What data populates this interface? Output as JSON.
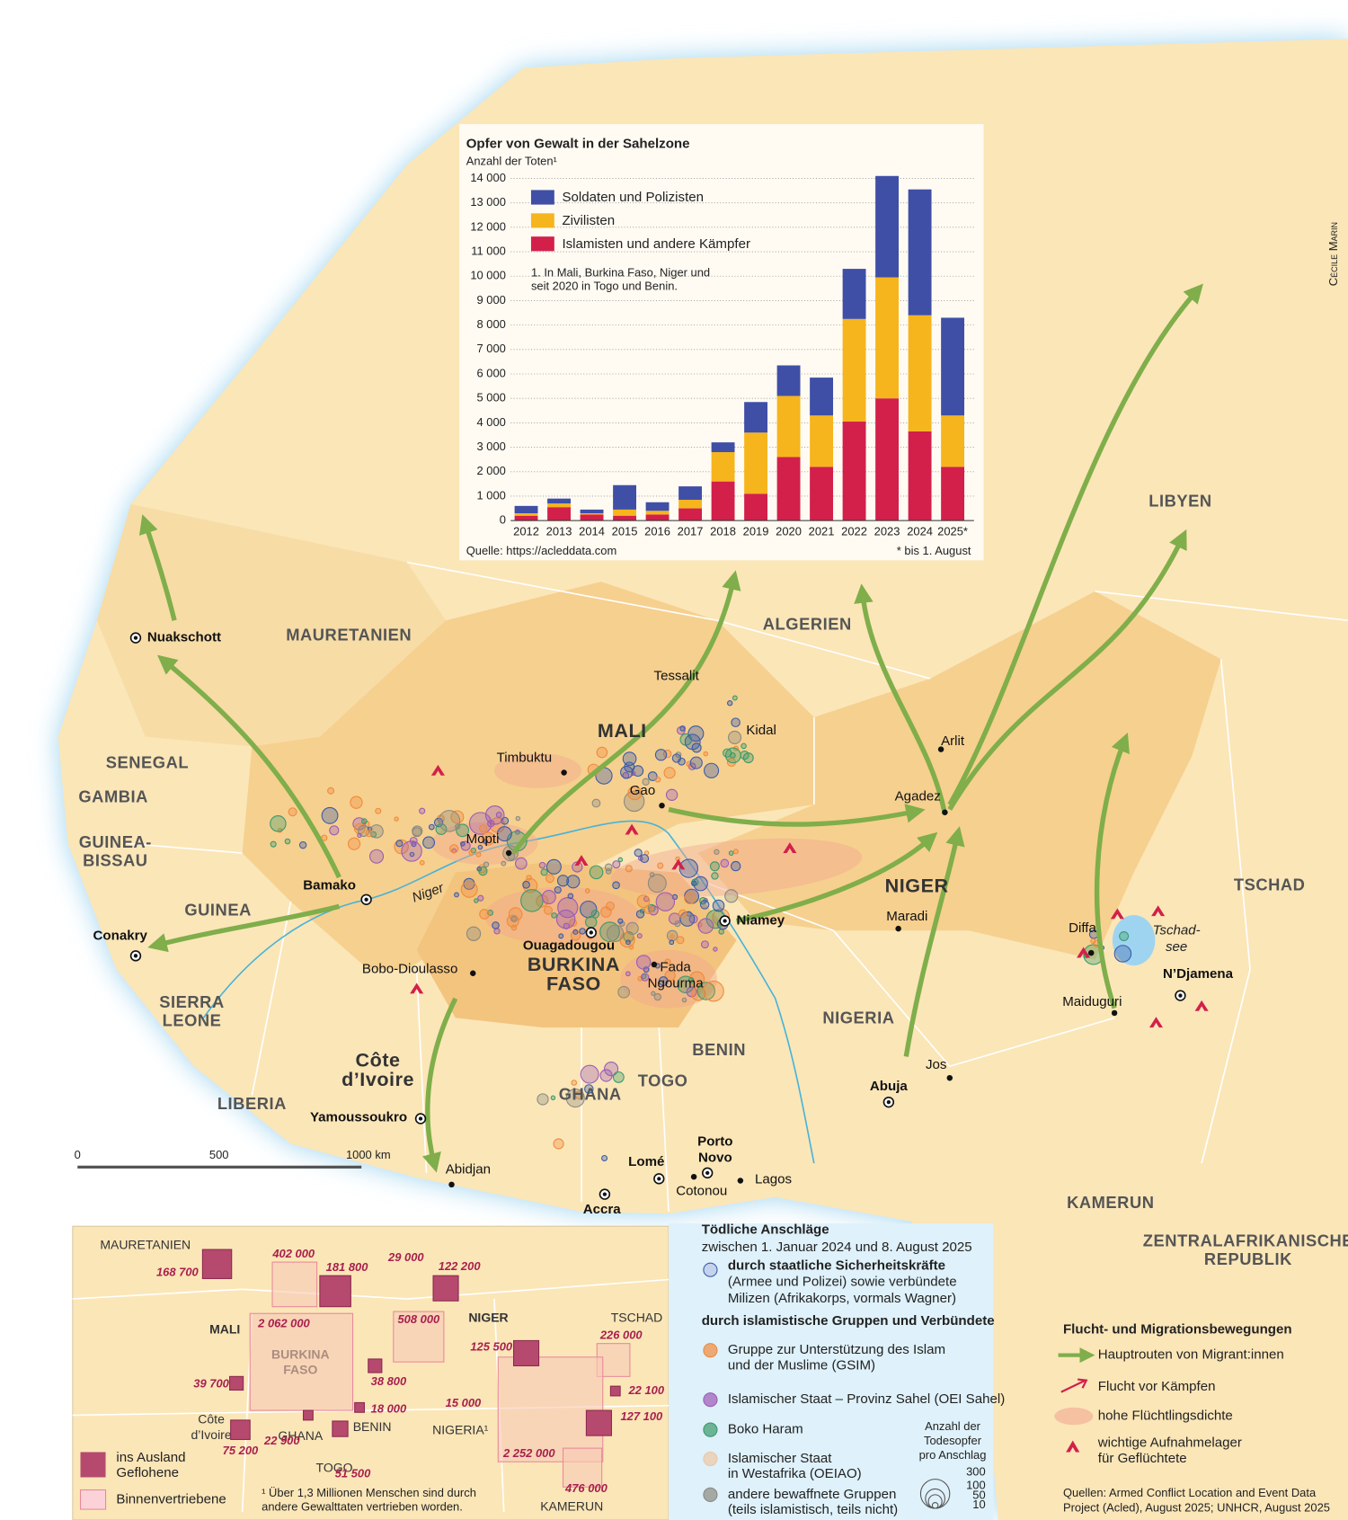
{
  "map": {
    "countries": [
      "MAURETANIEN",
      "ALGERIEN",
      "LIBYEN",
      "MALI",
      "NIGER",
      "TSCHAD",
      "SENEGAL",
      "GAMBIA",
      [
        "GUINEA-",
        "BISSAU"
      ],
      "GUINEA",
      [
        "SIERRA",
        "LEONE"
      ],
      "LIBERIA",
      [
        "Côte",
        "d’Ivoire"
      ],
      "GHANA",
      "TOGO",
      "BENIN",
      [
        "BURKINA",
        "FASO"
      ],
      "NIGERIA",
      "KAMERUN",
      [
        "ZENTRALAFRIKANISCHE",
        "REPUBLIK"
      ]
    ],
    "cities": [
      "Nuakschott",
      "Tessalit",
      "Kidal",
      "Timbuktu",
      "Gao",
      "Mopti",
      "Arlit",
      "Agadez",
      "Bamako",
      "Niamey",
      "Maradi",
      "Diffa",
      "N’Djamena",
      "Maiduguri",
      "Conakry",
      "Bobo-Dioulasso",
      "Ouagadougou",
      [
        "Fada",
        "Ngourma"
      ],
      "Jos",
      "Abuja",
      "Yamoussoukro",
      "Abidjan",
      "Accra",
      "Lomé",
      [
        "Porto",
        "Novo"
      ],
      "Cotonou",
      "Lagos"
    ],
    "river": "Niger",
    "lake": [
      "Tschad-",
      "see"
    ],
    "scale": [
      "0",
      "500",
      "1000 km"
    ],
    "credit": "Cécile Marin"
  },
  "chart_data": {
    "type": "bar",
    "stacked": true,
    "title": "Opfer von Gewalt in der Sahelzone",
    "subtitle": "Anzahl der Toten¹",
    "categories": [
      "2012",
      "2013",
      "2014",
      "2015",
      "2016",
      "2017",
      "2018",
      "2019",
      "2020",
      "2021",
      "2022",
      "2023",
      "2024",
      "2025*"
    ],
    "series": [
      {
        "name": "Soldaten und Polizisten",
        "color": "#3f4fa6",
        "values": [
          300,
          200,
          150,
          1000,
          350,
          550,
          400,
          1250,
          1250,
          1550,
          2050,
          4150,
          5150,
          4000
        ]
      },
      {
        "name": "Zivilisten",
        "color": "#f6b51d",
        "values": [
          100,
          150,
          50,
          250,
          150,
          350,
          1200,
          2500,
          2500,
          2100,
          4200,
          4950,
          4750,
          2100
        ]
      },
      {
        "name": "Islamisten und andere Kämpfer",
        "color": "#d2204a",
        "values": [
          200,
          550,
          250,
          200,
          250,
          500,
          1600,
          1100,
          2600,
          2200,
          4050,
          5000,
          3650,
          2200
        ]
      }
    ],
    "ylim": [
      0,
      14000
    ],
    "yticks": [
      0,
      {
        "value": 1000,
        "label": "1 000"
      },
      {
        "value": 2000,
        "label": "2 000"
      },
      {
        "value": 3000,
        "label": "3 000"
      },
      {
        "value": 4000,
        "label": "4 000"
      },
      {
        "value": 5000,
        "label": "5 000"
      },
      {
        "value": 6000,
        "label": "6 000"
      },
      {
        "value": 7000,
        "label": "7 000"
      },
      {
        "value": 8000,
        "label": "8 000"
      },
      {
        "value": 9000,
        "label": "9 000"
      },
      {
        "value": 10000,
        "label": "10 000"
      },
      {
        "value": 11000,
        "label": "11 000"
      },
      {
        "value": 12000,
        "label": "12 000"
      },
      {
        "value": 13000,
        "label": "13 000"
      },
      {
        "value": 14000,
        "label": "14 000"
      }
    ],
    "grid": true,
    "note": [
      "1. In Mali, Burkina Faso, Niger und",
      "seit 2020 in Togo und Benin."
    ],
    "source": "Quelle: https://acleddata.com",
    "footnote": "* bis 1. August"
  },
  "legend": {
    "attacks": {
      "title": "Tödliche Anschläge",
      "subtitle": "zwischen 1. Januar 2024 und 8. August 2025",
      "state": [
        "durch staatliche Sicherheitskräfte",
        "(Armee und Polizei) sowie verbündete",
        "Milizen (Afrikakorps, vormals Wagner)"
      ],
      "islamist_heading": "durch islamistische Gruppen und Verbündete",
      "items": [
        [
          "Gruppe zur Unterstützung des Islam",
          "und der Muslime (GSIM)"
        ],
        [
          "Islamischer Staat – Provinz Sahel (OEI Sahel)"
        ],
        [
          "Boko Haram"
        ],
        [
          "Islamischer Staat",
          "in Westafrika (OEIAO)"
        ],
        [
          "andere bewaffnete Gruppen",
          "(teils islamistisch, teils nicht)"
        ]
      ],
      "size_title": [
        "Anzahl der",
        "Todesopfer",
        "pro Anschlag"
      ],
      "sizes": [
        "300",
        "100",
        "50",
        "10"
      ]
    },
    "migration": {
      "title": "Flucht- und Migrationsbewegungen",
      "items": [
        [
          "Hauptrouten von Migrant:innen"
        ],
        [
          "Flucht vor Kämpfen"
        ],
        [
          "hohe Flüchtlingsdichte"
        ],
        [
          "wichtige Aufnahmelager",
          "für Geflüchtete"
        ]
      ]
    },
    "sources": [
      "Quellen: Armed Conflict Location and Event Data",
      "Project (Acled), August 2025; UNHCR, August 2025"
    ]
  },
  "inset": {
    "labels": [
      "MAURETANIEN",
      "MALI",
      [
        "BURKINA",
        "FASO"
      ],
      "NIGER",
      "TSCHAD",
      [
        "Côte",
        "d’Ivoire"
      ],
      "GHANA",
      "BENIN",
      "TOGO",
      "NIGERIA¹",
      "KAMERUN"
    ],
    "abroad": [
      "168 700",
      "181 800",
      "122 200",
      "39 700",
      "38 800",
      "18 000",
      "22 900",
      "75 200",
      "51 500",
      "29 000",
      "15 000",
      "125 500",
      "22 100",
      "127 100"
    ],
    "internal": [
      "402 000",
      "2 062 000",
      "508 000",
      "226 000",
      "2 252 000",
      "476 000"
    ],
    "legend": [
      [
        "ins Ausland",
        "Geflohene"
      ],
      [
        "Binnenvertriebene"
      ]
    ],
    "footnote": [
      "¹ Über 1,3 Millionen Menschen sind durch",
      "andere Gewalttaten vertrieben worden."
    ]
  }
}
